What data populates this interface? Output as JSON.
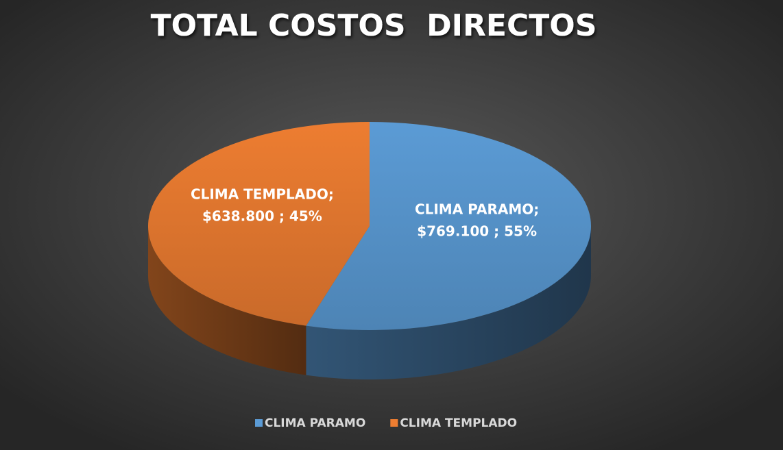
{
  "chart_data": {
    "type": "pie",
    "title": "TOTAL COSTOS  DIRECTOS",
    "categories": [
      "CLIMA PARAMO",
      "CLIMA TEMPLADO"
    ],
    "values": [
      769100,
      638800
    ],
    "label_names": [
      "CLIMA PARAMO;",
      "CLIMA TEMPLADO;"
    ],
    "value_labels": [
      "$769.100 ; 55%",
      "$638.800 ; 45%"
    ],
    "colors": [
      "#5b9bd5",
      "#ed7d31"
    ],
    "legend": "bottom"
  }
}
